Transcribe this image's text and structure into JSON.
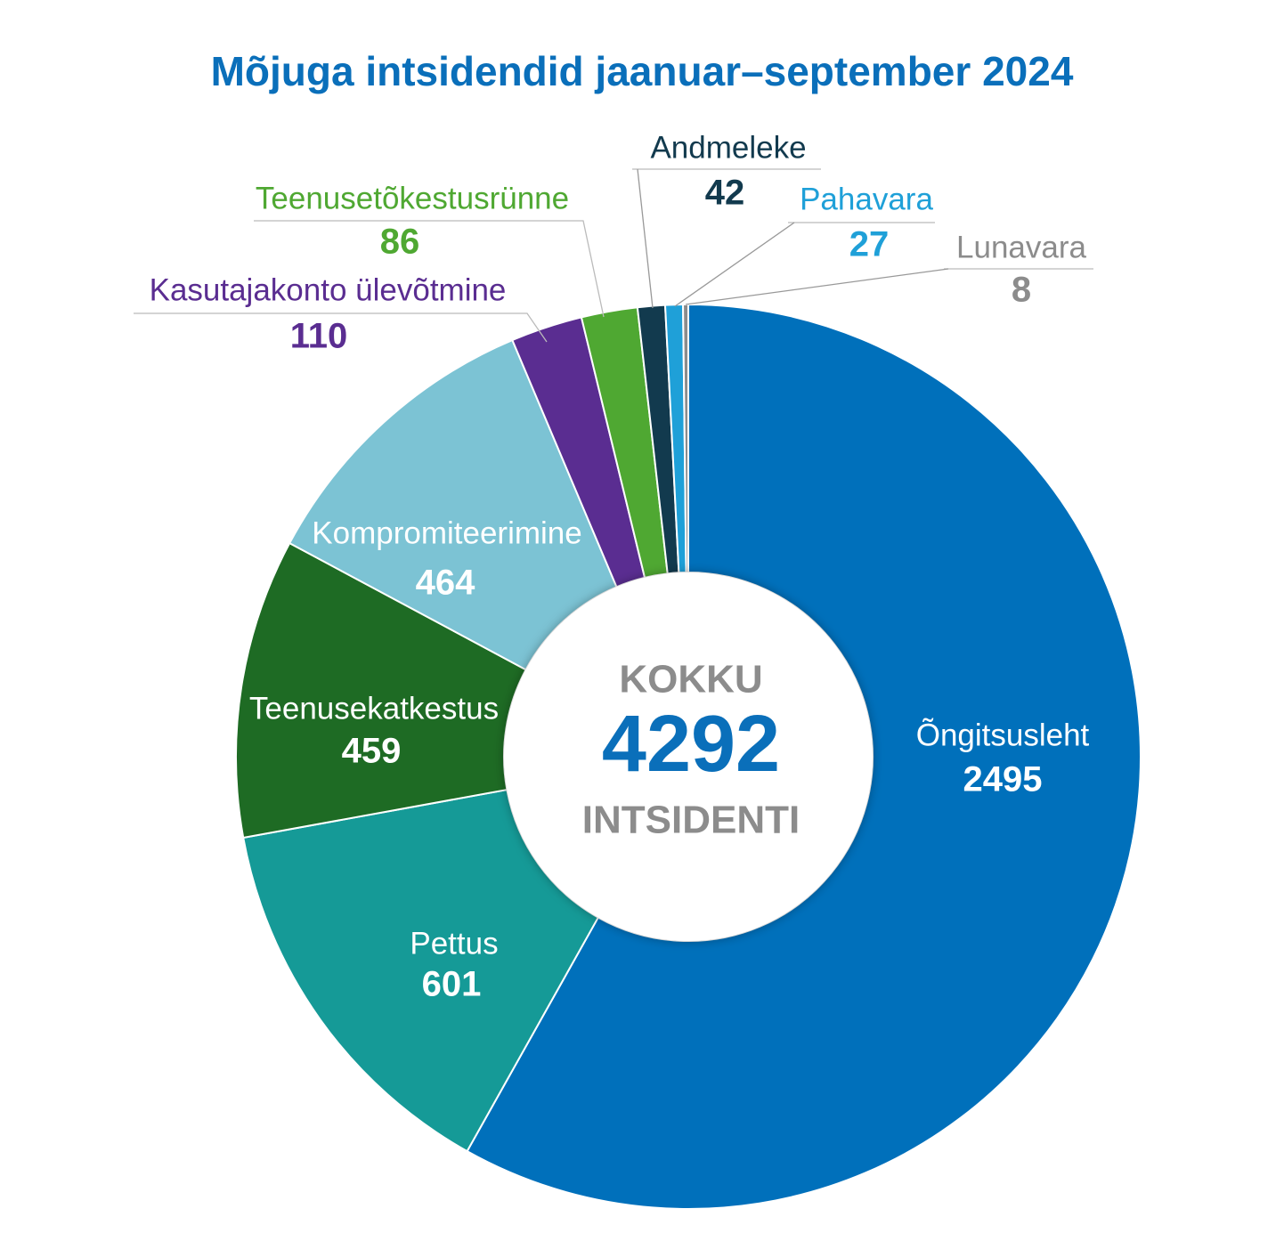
{
  "chart_data": {
    "type": "donut",
    "title": "Mõjuga intsidendid jaanuar–september 2024",
    "categories": [
      "Õngitsusleht",
      "Pettus",
      "Teenusekatkestus",
      "Kompromiteerimine",
      "Kasutajakonto ülevõtmine",
      "Teenusetõkestusrünne",
      "Andmeleke",
      "Pahavara",
      "Lunavara"
    ],
    "values": [
      2495,
      601,
      459,
      464,
      110,
      86,
      42,
      27,
      8
    ],
    "colors": [
      "#0070bb",
      "#159a97",
      "#1e6b24",
      "#7cc3d4",
      "#5a2d91",
      "#4fa832",
      "#123a4e",
      "#1fa0d8",
      "#8c8c8c"
    ],
    "center_label_top": "KOKKU",
    "center_value": 4292,
    "center_label_bottom": "INTSIDENTI"
  }
}
